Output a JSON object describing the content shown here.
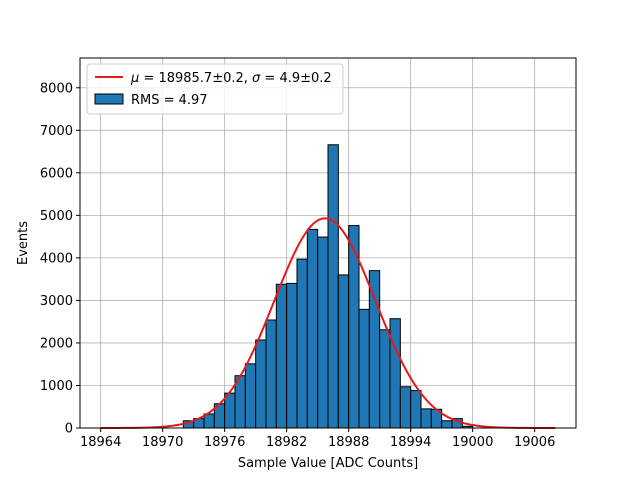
{
  "chart_data": {
    "type": "bar",
    "title": "",
    "xlabel": "Sample Value [ADC Counts]",
    "ylabel": "Events",
    "xlim": [
      18962,
      19010
    ],
    "ylim": [
      0,
      8700
    ],
    "xticks": [
      18964,
      18970,
      18976,
      18982,
      18988,
      18994,
      19000,
      19006
    ],
    "yticks": [
      0,
      1000,
      2000,
      3000,
      4000,
      5000,
      6000,
      7000,
      8000
    ],
    "grid": true,
    "legend_position": "upper-left",
    "histogram": {
      "name": "RMS = 4.97",
      "color": "#1f77b4",
      "edgecolor": "#000000",
      "bin_edges": [
        18972,
        18973,
        18974,
        18975,
        18976,
        18977,
        18978,
        18979,
        18980,
        18981,
        18982,
        18983,
        18984,
        18985,
        18986,
        18987,
        18988,
        18989,
        18990,
        18991,
        18992,
        18993,
        18994,
        18995,
        18996,
        18997,
        18998,
        18999,
        19000
      ],
      "counts": [
        170,
        220,
        330,
        570,
        820,
        1230,
        1510,
        2070,
        2540,
        3380,
        3400,
        3970,
        4670,
        4490,
        6660,
        3600,
        4760,
        2790,
        3700,
        2310,
        2570,
        970,
        880,
        450,
        440,
        170,
        220,
        40
      ]
    },
    "fit": {
      "name": "$\\mu = 18985.7{\\pm}0.2$, $\\sigma = 4.9{\\pm}0.2$",
      "label_parts": {
        "mu_symbol": "μ",
        "mu_text": " = 18985.7±0.2, ",
        "sigma_symbol": "σ",
        "sigma_text": " = 4.9±0.2"
      },
      "color": "#e31a1c",
      "mu": 18985.7,
      "sigma": 4.9,
      "amplitude": 4930,
      "x_range": [
        18964,
        19008
      ]
    }
  }
}
